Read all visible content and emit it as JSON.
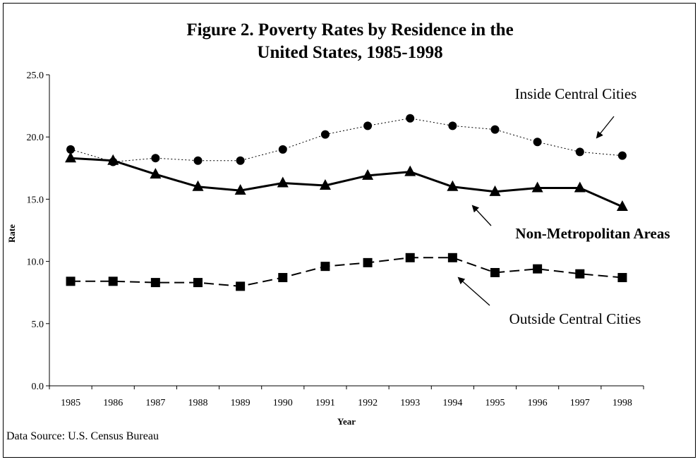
{
  "chart_data": {
    "type": "line",
    "title_line1": "Figure 2.  Poverty Rates by Residence in the",
    "title_line2": "United States, 1985-1998",
    "xlabel": "Year",
    "ylabel": "Rate",
    "source": "Data Source: U.S. Census Bureau",
    "x": [
      1985,
      1986,
      1987,
      1988,
      1989,
      1990,
      1991,
      1992,
      1993,
      1994,
      1995,
      1996,
      1997,
      1998
    ],
    "x_tick_labels": [
      "1985",
      "1986",
      "1987",
      "1988",
      "1989",
      "1990",
      "1991",
      "1992",
      "1993",
      "1994",
      "1995",
      "1996",
      "1997",
      "1998"
    ],
    "ylim": [
      0,
      25
    ],
    "y_tick_labels": [
      "0.0",
      "5.0",
      "10.0",
      "15.0",
      "20.0",
      "25.0"
    ],
    "grid": false,
    "series": [
      {
        "name": "Inside Central Cities",
        "style": "dotted",
        "marker": "circle",
        "values": [
          19.0,
          18.0,
          18.3,
          18.1,
          18.1,
          19.0,
          20.2,
          20.9,
          21.5,
          20.9,
          20.6,
          19.6,
          18.8,
          18.5
        ]
      },
      {
        "name": "Non-Metropolitan Areas",
        "style": "solid",
        "marker": "triangle",
        "values": [
          18.3,
          18.1,
          17.0,
          16.0,
          15.7,
          16.3,
          16.1,
          16.9,
          17.2,
          16.0,
          15.6,
          15.9,
          15.9,
          14.4
        ]
      },
      {
        "name": "Outside Central Cities",
        "style": "dashed",
        "marker": "square",
        "values": [
          8.4,
          8.4,
          8.3,
          8.3,
          8.0,
          8.7,
          9.6,
          9.9,
          10.3,
          10.3,
          9.1,
          9.4,
          9.0,
          8.7
        ]
      }
    ],
    "line_color": "#000000"
  }
}
